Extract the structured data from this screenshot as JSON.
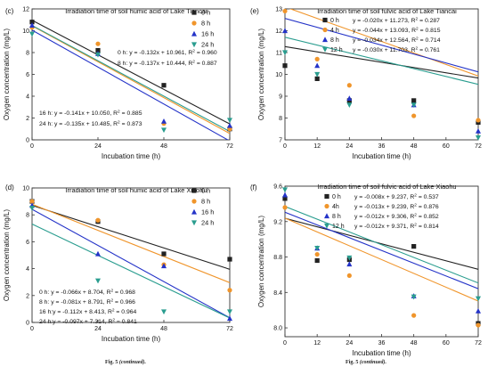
{
  "colors": {
    "h0": "#222222",
    "h8": "#f0952b",
    "h16": "#2433c8",
    "h24": "#2a9d8f"
  },
  "captions": [
    {
      "label": "Fig. 5",
      "note": "(continued)."
    },
    {
      "label": "Fig. 5",
      "note": "(continued)."
    }
  ],
  "chart_data": [
    {
      "type": "scatter",
      "panel": "(c)",
      "title": "Irradiation time of soil humic acid of Lake Tiancai",
      "xlabel": "Incubation time (h)",
      "ylabel": "Oxygen concentration (mg/L)",
      "xlim": [
        0,
        72
      ],
      "ylim": [
        0,
        12
      ],
      "xticks": [
        0,
        24,
        48,
        72
      ],
      "yticks": [
        0,
        2,
        4,
        6,
        8,
        10,
        12
      ],
      "legend": "top-right",
      "x": [
        0,
        24,
        48,
        72
      ],
      "series": [
        {
          "name": "0 h",
          "marker": "square",
          "color_key": "h0",
          "values": [
            10.8,
            8.2,
            5.0,
            1.0
          ],
          "fit": [
            -0.132,
            10.961
          ]
        },
        {
          "name": "8 h",
          "marker": "circle",
          "color_key": "h8",
          "values": [
            10.3,
            8.8,
            1.5,
            1.0
          ],
          "fit": [
            -0.137,
            10.444
          ]
        },
        {
          "name": "16 h",
          "marker": "triangle",
          "color_key": "h16",
          "values": [
            10.5,
            7.9,
            1.7,
            1.3
          ],
          "fit": [
            -0.141,
            10.05
          ]
        },
        {
          "name": "24 h",
          "marker": "triangle-down",
          "color_key": "h24",
          "values": [
            9.7,
            7.8,
            0.9,
            1.8
          ],
          "fit": [
            -0.135,
            10.485
          ]
        }
      ],
      "equations": [
        {
          "text": "0 h: y = -0.132x + 10.961, R",
          "r2": " = 0.960"
        },
        {
          "text": "8 h: y = -0.137x + 10.444, R",
          "r2": " = 0.887"
        },
        {
          "text": "16 h: y = -0.141x + 10.050, R",
          "r2": " = 0.885"
        },
        {
          "text": "24 h: y = -0.135x + 10.485, R",
          "r2": " = 0.873"
        }
      ]
    },
    {
      "type": "scatter",
      "panel": "(e)",
      "title": "Irradiation time of soil fulvic acid of Lake Tiancai",
      "xlabel": "Incubation time (h)",
      "ylabel": "Oxygen concentration (mg/L)",
      "xlim": [
        0,
        72
      ],
      "ylim": [
        7,
        13
      ],
      "xticks": [
        0,
        12,
        24,
        36,
        48,
        60,
        72
      ],
      "yticks": [
        7,
        8,
        9,
        10,
        11,
        12,
        13
      ],
      "legend": "top-right",
      "x": [
        0,
        12,
        24,
        48,
        72
      ],
      "series": [
        {
          "name": "0 h",
          "marker": "square",
          "color_key": "h0",
          "values": [
            10.4,
            9.8,
            8.8,
            8.8,
            7.8
          ],
          "fit": [
            -0.02,
            11.273
          ]
        },
        {
          "name": "4 h",
          "marker": "circle",
          "color_key": "h8",
          "values": [
            12.9,
            10.7,
            9.5,
            8.1,
            7.9
          ],
          "fit": [
            -0.044,
            13.093
          ]
        },
        {
          "name": "8 h",
          "marker": "triangle",
          "color_key": "h16",
          "values": [
            12.0,
            10.4,
            8.9,
            8.6,
            7.4
          ],
          "fit": [
            -0.034,
            12.564
          ]
        },
        {
          "name": "12 h",
          "marker": "triangle-down",
          "color_key": "h24",
          "values": [
            11.0,
            10.0,
            8.6,
            8.6,
            7.1
          ],
          "fit": [
            -0.03,
            11.703
          ]
        }
      ],
      "equations": [
        {
          "text": "y = -0.020x + 11.273, R",
          "r2": " = 0.287"
        },
        {
          "text": "y = -0.044x + 13.093, R",
          "r2": " = 0.815"
        },
        {
          "text": "y = -0.034x + 12.564, R",
          "r2": " = 0.714"
        },
        {
          "text": "y = -0.030x + 11.703, R",
          "r2": " = 0.761"
        }
      ]
    },
    {
      "type": "scatter",
      "panel": "(d)",
      "title": "Irradiation time of soil humic acid of Lake Xiaohu",
      "xlabel": "Incubation time (h)",
      "ylabel": "Oxygen concentration (mg/L)",
      "xlim": [
        0,
        72
      ],
      "ylim": [
        0,
        10
      ],
      "xticks": [
        0,
        24,
        48,
        72
      ],
      "yticks": [
        0,
        2,
        4,
        6,
        8,
        10
      ],
      "legend": "top-right",
      "x": [
        0,
        24,
        48,
        72
      ],
      "series": [
        {
          "name": "0 h",
          "marker": "square",
          "color_key": "h0",
          "values": [
            9.0,
            7.5,
            5.1,
            4.7
          ],
          "fit": [
            -0.066,
            8.704
          ]
        },
        {
          "name": "8 h",
          "marker": "circle",
          "color_key": "h8",
          "values": [
            9.0,
            7.6,
            4.3,
            2.4
          ],
          "fit": [
            -0.081,
            8.791
          ]
        },
        {
          "name": "16 h",
          "marker": "triangle",
          "color_key": "h16",
          "values": [
            8.7,
            5.1,
            4.2,
            0.3
          ],
          "fit": [
            -0.112,
            8.413
          ]
        },
        {
          "name": "24 h",
          "marker": "triangle-down",
          "color_key": "h24",
          "values": [
            8.5,
            3.1,
            0.8,
            0.8
          ],
          "fit": [
            -0.097,
            7.314
          ]
        }
      ],
      "equations": [
        {
          "text": "0 h: y = -0.066x + 8.704, R",
          "r2": " = 0.968"
        },
        {
          "text": "8 h: y = -0.081x + 8.791, R",
          "r2": " = 0.966"
        },
        {
          "text": "16 h:y = -0.112x + 8.413, R",
          "r2": " = 0.964"
        },
        {
          "text": "24 h:y = -0.097x + 7.314, R",
          "r2": " = 0.841"
        }
      ]
    },
    {
      "type": "scatter",
      "panel": "(f)",
      "title": "Irradiation time of soil fulvic acid of Lake Xiaohu",
      "xlabel": "Incubation time (h)",
      "ylabel": "Oxygen concentration (mg/L)",
      "xlim": [
        0,
        72
      ],
      "ylim": [
        7.9,
        9.6
      ],
      "xticks": [
        0,
        12,
        24,
        36,
        48,
        60,
        72
      ],
      "yticks": [
        8.0,
        8.4,
        8.8,
        9.2,
        9.6
      ],
      "legend": "top-right",
      "x": [
        0,
        12,
        24,
        48,
        72
      ],
      "series": [
        {
          "name": "0 h",
          "marker": "square",
          "color_key": "h0",
          "values": [
            9.46,
            8.76,
            8.77,
            8.92,
            8.05
          ],
          "fit": [
            -0.008,
            9.237
          ]
        },
        {
          "name": "4h",
          "marker": "circle",
          "color_key": "h8",
          "values": [
            9.36,
            8.83,
            8.59,
            8.14,
            8.03
          ],
          "fit": [
            -0.013,
            9.239
          ]
        },
        {
          "name": "8 h",
          "marker": "triangle",
          "color_key": "h16",
          "values": [
            9.5,
            8.9,
            8.72,
            8.36,
            8.19
          ],
          "fit": [
            -0.012,
            9.306
          ]
        },
        {
          "name": "12 h",
          "marker": "triangle-down",
          "color_key": "h24",
          "values": [
            9.56,
            8.9,
            8.79,
            8.35,
            8.33
          ],
          "fit": [
            -0.012,
            9.371
          ]
        }
      ],
      "equations": [
        {
          "text": "y = -0.008x + 9.237, R",
          "r2": " = 0.537"
        },
        {
          "text": "y = -0.013x + 9.239, R",
          "r2": " = 0.876"
        },
        {
          "text": "y = -0.012x + 9.306, R",
          "r2": " = 0.852"
        },
        {
          "text": "y = -0.012x + 9.371, R",
          "r2": " = 0.814"
        }
      ]
    }
  ]
}
